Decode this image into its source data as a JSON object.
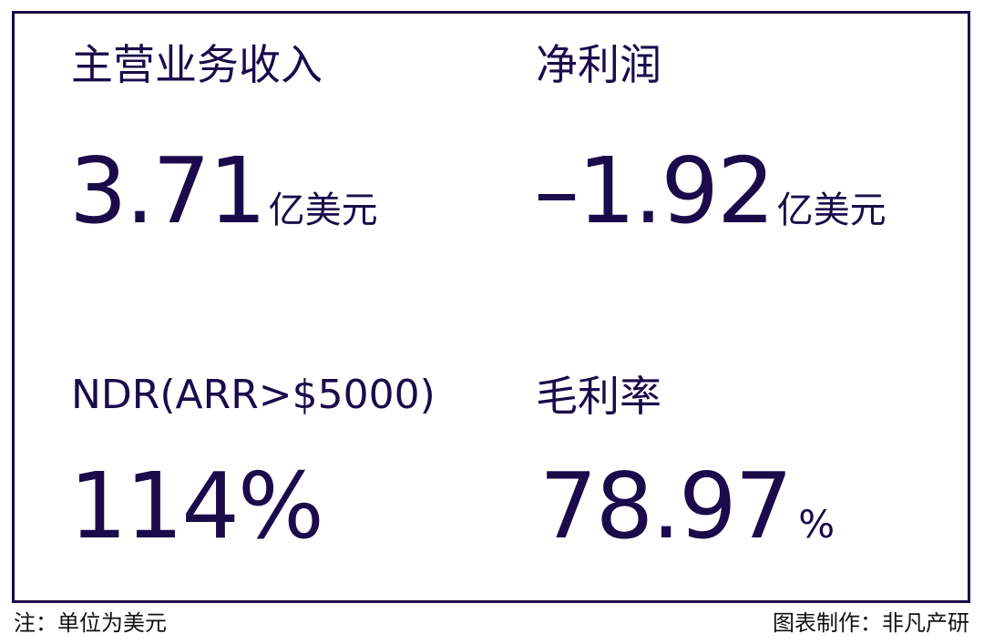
{
  "colors": {
    "primary": "#1a0b4b",
    "footer_text": "#111111"
  },
  "metrics": [
    {
      "label": "主营业务收入",
      "value": "3.71",
      "unit": "亿美元"
    },
    {
      "label": "净利润",
      "value": "–1.92",
      "unit": "亿美元"
    },
    {
      "label": "NDR(ARR>$5000)",
      "value": "114%",
      "unit": ""
    },
    {
      "label": "毛利率",
      "value": "78.97",
      "unit": "%"
    }
  ],
  "footer": {
    "note": "注：单位为美元",
    "credit": "图表制作：非凡产研"
  }
}
